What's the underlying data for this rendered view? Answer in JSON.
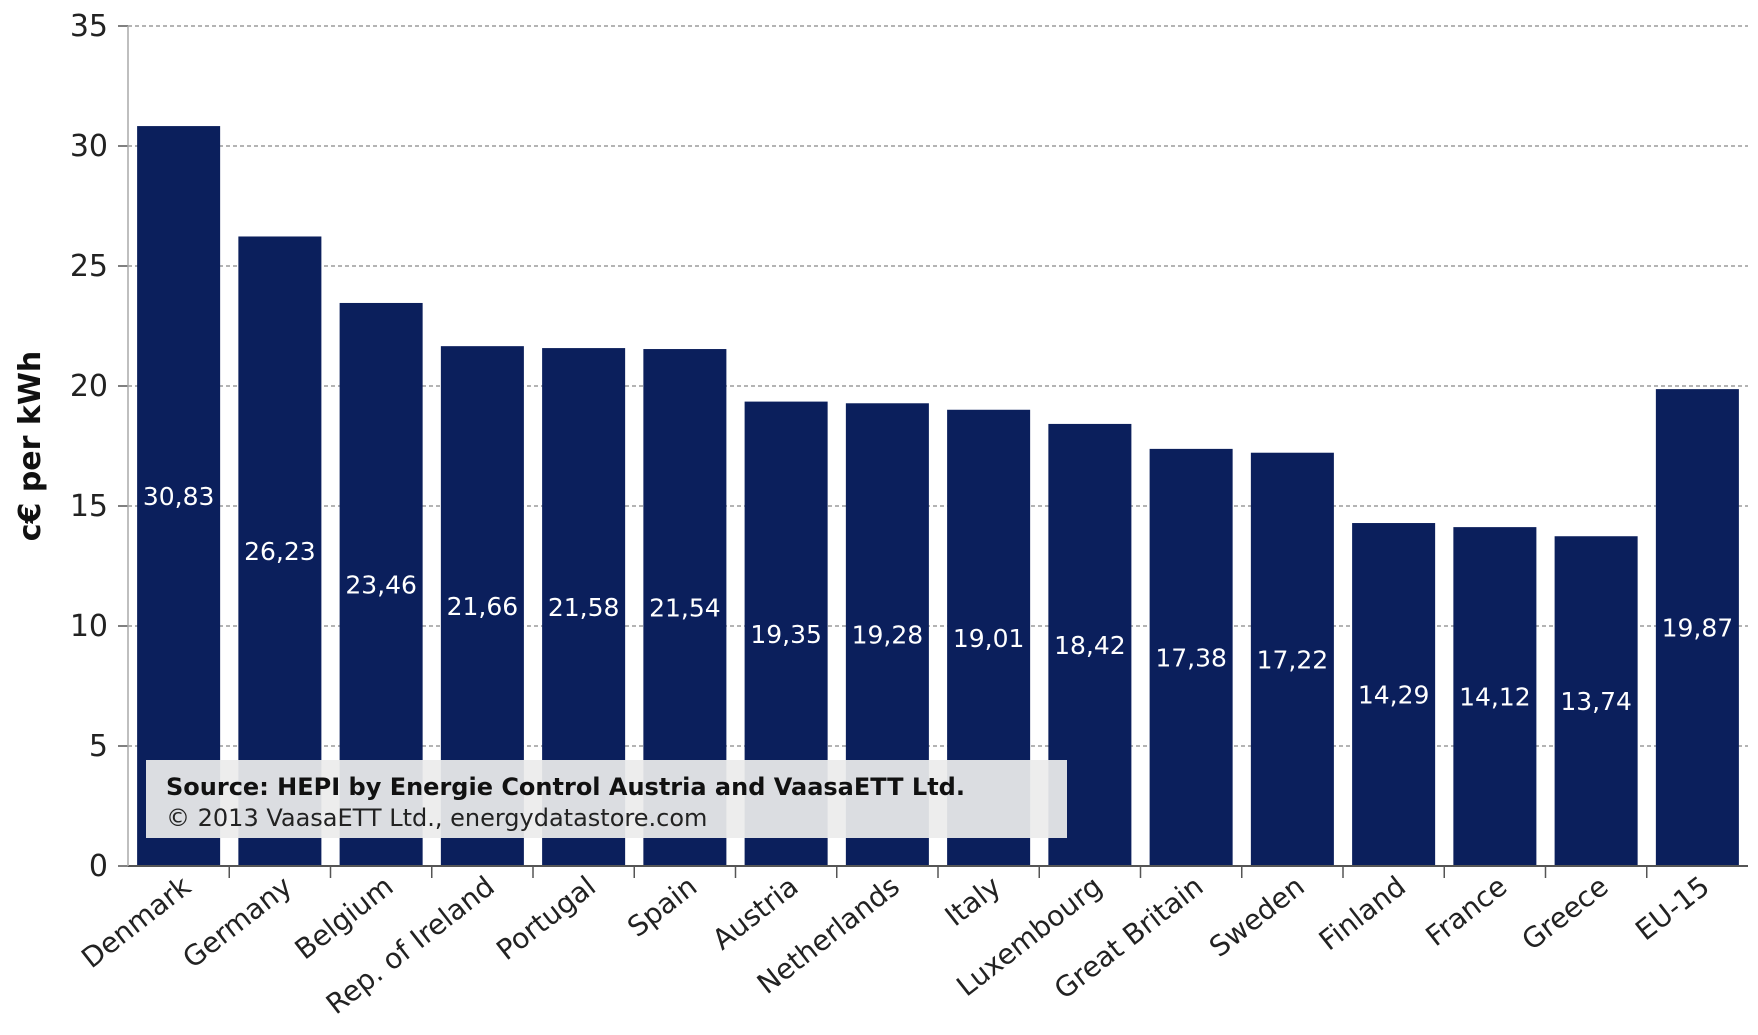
{
  "chart_data": {
    "type": "bar",
    "title": "",
    "xlabel": "",
    "ylabel": "c€ per kWh",
    "ylim": [
      0,
      35
    ],
    "yticks": [
      0,
      5,
      10,
      15,
      20,
      25,
      30,
      35
    ],
    "grid": true,
    "categories": [
      "Denmark",
      "Germany",
      "Belgium",
      "Rep. of Ireland",
      "Portugal",
      "Spain",
      "Austria",
      "Netherlands",
      "Italy",
      "Luxembourg",
      "Great Britain",
      "Sweden",
      "Finland",
      "France",
      "Greece",
      "EU-15"
    ],
    "values": [
      30.83,
      26.23,
      23.46,
      21.66,
      21.58,
      21.54,
      19.35,
      19.28,
      19.01,
      18.42,
      17.38,
      17.22,
      14.29,
      14.12,
      13.74,
      19.87
    ],
    "data_labels": [
      "30,83",
      "26,23",
      "23,46",
      "21,66",
      "21,58",
      "21,54",
      "19,35",
      "19,28",
      "19,01",
      "18,42",
      "17,38",
      "17,22",
      "14,29",
      "14,12",
      "13,74",
      "19,87"
    ],
    "bar_color": "#0b1f5c",
    "grid_color": "#888888",
    "annotation": {
      "line1": "Source: HEPI by Energie Control Austria and VaasaETT Ltd.",
      "line2": "© 2013 VaasaETT Ltd., energydatastore.com"
    }
  }
}
